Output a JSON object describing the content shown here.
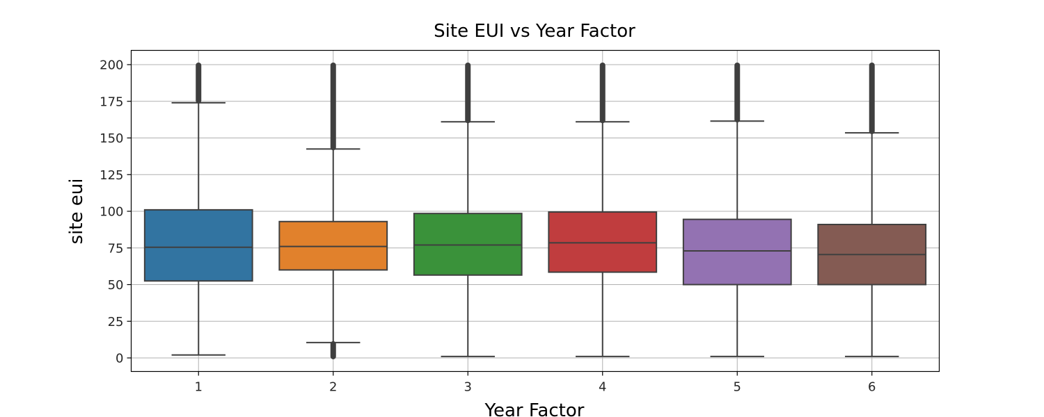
{
  "chart_data": {
    "type": "boxplot",
    "title": "Site EUI vs Year Factor",
    "xlabel": "Year Factor",
    "ylabel": "site eui",
    "ylim": [
      -9,
      210
    ],
    "yticks": [
      0,
      25,
      50,
      75,
      100,
      125,
      150,
      175,
      200
    ],
    "grid": true,
    "categories": [
      "1",
      "2",
      "3",
      "4",
      "5",
      "6"
    ],
    "colors": [
      "#3274a1",
      "#e1812c",
      "#3a923a",
      "#c03d3e",
      "#9372b2",
      "#845b53"
    ],
    "boxes": [
      {
        "category": "1",
        "whisker_low": 2,
        "q1": 52.5,
        "median": 75.5,
        "q3": 101,
        "whisker_high": 174,
        "outliers_low": null,
        "outliers_high": [
          175,
          200
        ]
      },
      {
        "category": "2",
        "whisker_low": 10.5,
        "q1": 60,
        "median": 76,
        "q3": 93,
        "whisker_high": 142.5,
        "outliers_low": [
          0.5,
          10
        ],
        "outliers_high": [
          143,
          200
        ]
      },
      {
        "category": "3",
        "whisker_low": 1,
        "q1": 56.5,
        "median": 77,
        "q3": 98.5,
        "whisker_high": 161,
        "outliers_low": null,
        "outliers_high": [
          161.5,
          200
        ]
      },
      {
        "category": "4",
        "whisker_low": 1,
        "q1": 58.5,
        "median": 78.5,
        "q3": 99.5,
        "whisker_high": 161,
        "outliers_low": null,
        "outliers_high": [
          161.5,
          200
        ]
      },
      {
        "category": "5",
        "whisker_low": 1,
        "q1": 50,
        "median": 73,
        "q3": 94.5,
        "whisker_high": 161.5,
        "outliers_low": null,
        "outliers_high": [
          162,
          200
        ]
      },
      {
        "category": "6",
        "whisker_low": 1,
        "q1": 50,
        "median": 70.5,
        "q3": 91,
        "whisker_high": 153.5,
        "outliers_low": null,
        "outliers_high": [
          154,
          200
        ]
      }
    ]
  }
}
